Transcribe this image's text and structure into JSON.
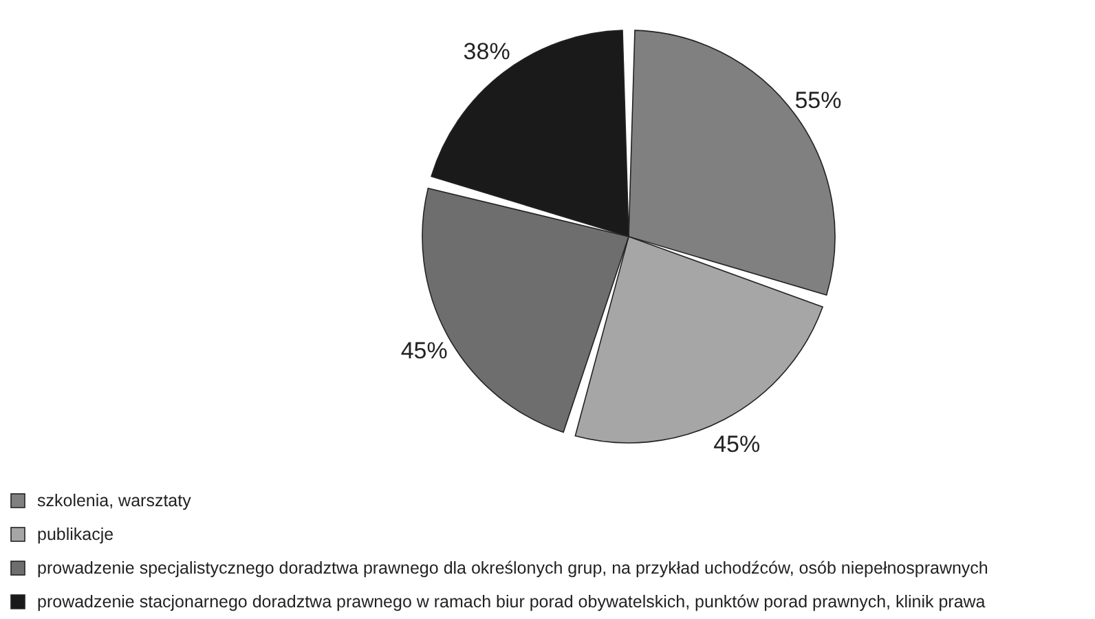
{
  "chart_data": {
    "type": "pie",
    "categories": [
      "szkolenia, warsztaty",
      "publikacje",
      "prowadzenie specjalistycznego doradztwa prawnego dla określonych grup, na przykład uchodźców, osób niepełnosprawnych",
      "prowadzenie stacjonarnego doradztwa prawnego w ramach biur porad obywatelskich, punktów porad prawnych, klinik prawa"
    ],
    "values": [
      55,
      45,
      45,
      38
    ],
    "value_labels": [
      "55%",
      "45%",
      "45%",
      "38%"
    ],
    "colors": [
      "#808080",
      "#a6a6a6",
      "#6e6e6e",
      "#1a1a1a"
    ],
    "legend": "bottom"
  }
}
